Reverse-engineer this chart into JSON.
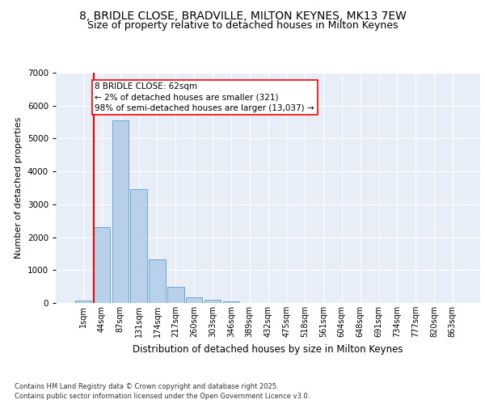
{
  "title_line1": "8, BRIDLE CLOSE, BRADVILLE, MILTON KEYNES, MK13 7EW",
  "title_line2": "Size of property relative to detached houses in Milton Keynes",
  "xlabel": "Distribution of detached houses by size in Milton Keynes",
  "ylabel": "Number of detached properties",
  "footer_line1": "Contains HM Land Registry data © Crown copyright and database right 2025.",
  "footer_line2": "Contains public sector information licensed under the Open Government Licence v3.0.",
  "bar_labels": [
    "1sqm",
    "44sqm",
    "87sqm",
    "131sqm",
    "174sqm",
    "217sqm",
    "260sqm",
    "303sqm",
    "346sqm",
    "389sqm",
    "432sqm",
    "475sqm",
    "518sqm",
    "561sqm",
    "604sqm",
    "648sqm",
    "691sqm",
    "734sqm",
    "777sqm",
    "820sqm",
    "863sqm"
  ],
  "bar_values": [
    80,
    2300,
    5550,
    3470,
    1330,
    480,
    175,
    95,
    50,
    0,
    0,
    0,
    0,
    0,
    0,
    0,
    0,
    0,
    0,
    0,
    0
  ],
  "bar_color": "#b8d0ea",
  "bar_edge_color": "#5a9fd4",
  "annotation_text": "8 BRIDLE CLOSE: 62sqm\n← 2% of detached houses are smaller (321)\n98% of semi-detached houses are larger (13,037) →",
  "vline_color": "red",
  "ylim": [
    0,
    7000
  ],
  "yticks": [
    0,
    1000,
    2000,
    3000,
    4000,
    5000,
    6000,
    7000
  ],
  "background_color": "#e8eef8",
  "grid_color": "#ffffff",
  "title_fontsize": 10,
  "subtitle_fontsize": 9,
  "annotation_fontsize": 7.5,
  "ylabel_fontsize": 8,
  "xlabel_fontsize": 8.5,
  "tick_fontsize": 7,
  "ytick_fontsize": 7.5,
  "footer_fontsize": 6
}
